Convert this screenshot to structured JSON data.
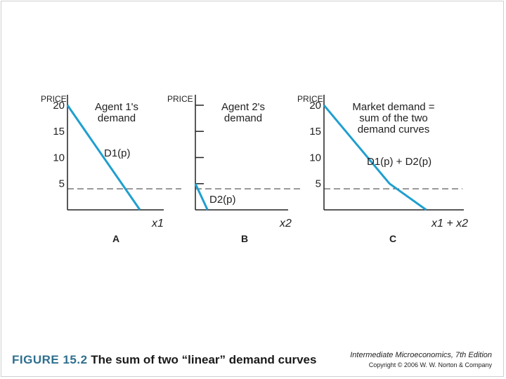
{
  "caption": {
    "figure_number": "FIGURE 15.2",
    "title": "The sum of two “linear” demand curves"
  },
  "credits": {
    "book": "Intermediate Microeconomics, 7th Edition",
    "copyright": "Copyright © 2006 W. W. Norton & Company"
  },
  "colors": {
    "curve": "#1f9fcf",
    "axis": "#222222",
    "dash": "#333333"
  },
  "chart_data": [
    {
      "type": "line",
      "panel": "A",
      "y_label": "PRICE",
      "title_lines": [
        "Agent 1's",
        "demand"
      ],
      "x_label": "x1",
      "curve_label": "D1(p)",
      "yticks": [
        5,
        10,
        15,
        20
      ],
      "tick_labels": [
        "5",
        "10",
        "15",
        "20"
      ],
      "ylim": [
        0,
        22
      ],
      "xlim": [
        0,
        13
      ],
      "reference_line_price": 5,
      "series": [
        {
          "name": "D1(p)",
          "x": [
            0,
            10
          ],
          "y": [
            20,
            0
          ]
        }
      ]
    },
    {
      "type": "line",
      "panel": "B",
      "y_label": "PRICE",
      "title_lines": [
        "Agent 2's",
        "demand"
      ],
      "x_label": "x2",
      "curve_label": "D2(p)",
      "yticks": [
        5,
        10,
        15,
        20
      ],
      "tick_labels": [],
      "ylim": [
        0,
        22
      ],
      "xlim": [
        0,
        13
      ],
      "reference_line_price": 5,
      "series": [
        {
          "name": "D2(p)",
          "x": [
            0,
            1.7
          ],
          "y": [
            5,
            0
          ]
        }
      ]
    },
    {
      "type": "line",
      "panel": "C",
      "y_label": "PRICE",
      "title_lines": [
        "Market demand =",
        "sum of the two",
        "demand curves"
      ],
      "x_label": "x1 + x2",
      "curve_label": "D1(p) + D2(p)",
      "yticks": [
        5,
        10,
        15,
        20
      ],
      "tick_labels": [
        "5",
        "10",
        "15",
        "20"
      ],
      "ylim": [
        0,
        22
      ],
      "xlim": [
        0,
        16
      ],
      "reference_line_price": 5,
      "series": [
        {
          "name": "D1(p) + D2(p)",
          "x": [
            0,
            7.5,
            11.7
          ],
          "y": [
            20,
            5,
            0
          ]
        }
      ]
    }
  ]
}
